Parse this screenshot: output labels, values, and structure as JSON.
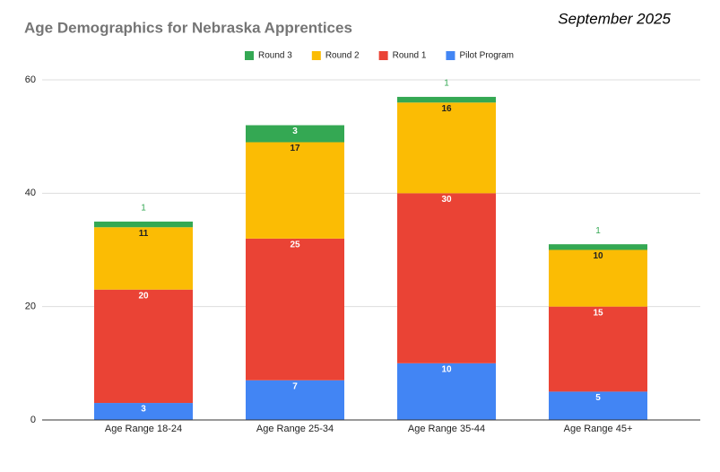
{
  "chart_data": {
    "type": "stacked_bar",
    "title": "Age Demographics for Nebraska Apprentices",
    "annotation": "September 2025",
    "categories": [
      "Age Range 18-24",
      "Age Range 25-34",
      "Age Range 35-44",
      "Age Range 45+"
    ],
    "series": [
      {
        "name": "Pilot Program",
        "color": "#4285f4",
        "values": [
          3,
          7,
          10,
          5
        ]
      },
      {
        "name": "Round 1",
        "color": "#ea4335",
        "values": [
          20,
          25,
          30,
          15
        ]
      },
      {
        "name": "Round 2",
        "color": "#fbbc04",
        "values": [
          11,
          17,
          16,
          10
        ]
      },
      {
        "name": "Round 3",
        "color": "#34a853",
        "values": [
          1,
          3,
          1,
          1
        ]
      }
    ],
    "ylim": [
      0,
      60
    ],
    "yticks": [
      0,
      20,
      40,
      60
    ],
    "grid": true,
    "legend": "top"
  }
}
